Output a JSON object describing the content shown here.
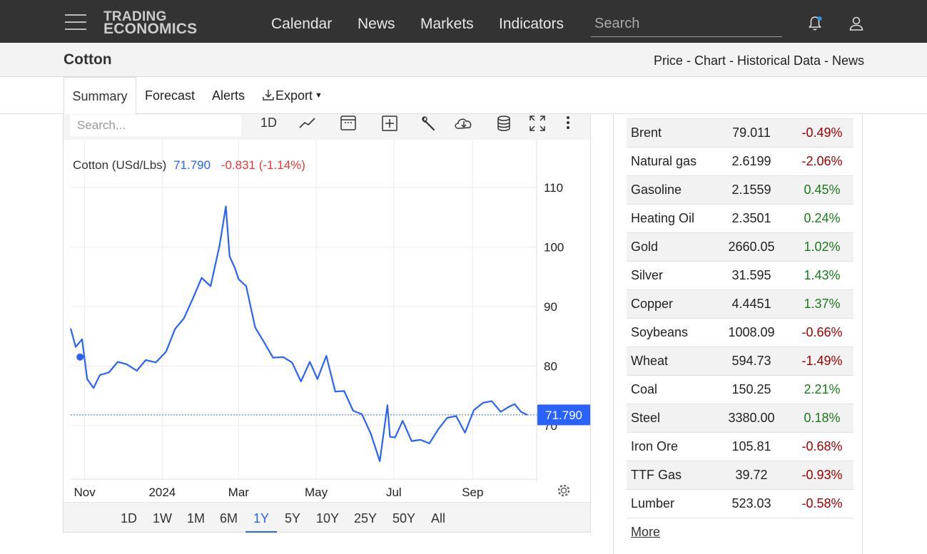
{
  "header": {
    "logo_line1": "TRADING",
    "logo_line2": "ECONOMICS",
    "nav": [
      "Calendar",
      "News",
      "Markets",
      "Indicators"
    ],
    "search_placeholder": "Search"
  },
  "titlebar": {
    "title": "Cotton",
    "subtitle": "Price - Chart - Historical Data - News"
  },
  "tabs": {
    "summary": "Summary",
    "forecast": "Forecast",
    "alerts": "Alerts",
    "export": "Export"
  },
  "chart_toolbar": {
    "search_placeholder": "Search...",
    "interval": "1D"
  },
  "chart_data": {
    "type": "line",
    "legend_name": "Cotton (USd/Lbs)",
    "legend_value": "71.790",
    "legend_change": "-0.831 (-1.14%)",
    "last_label": "71.790",
    "last_value": 71.79,
    "y_ticks": [
      70,
      80,
      90,
      100,
      110
    ],
    "y_tick_labels": [
      "70",
      "80",
      "90",
      "100",
      "110"
    ],
    "x_tick_labels": [
      "Nov",
      "2024",
      "Mar",
      "May",
      "Jul",
      "Sep"
    ],
    "ylim": [
      61,
      118
    ],
    "grid": true,
    "color": "#2962ff",
    "x": [
      "2023-10-21",
      "2023-10-25",
      "2023-10-30",
      "2023-11-03",
      "2023-11-08",
      "2023-11-13",
      "2023-11-20",
      "2023-11-27",
      "2023-12-04",
      "2023-12-12",
      "2023-12-19",
      "2023-12-27",
      "2024-01-04",
      "2024-01-11",
      "2024-01-18",
      "2024-01-25",
      "2024-02-01",
      "2024-02-08",
      "2024-02-15",
      "2024-02-20",
      "2024-02-23",
      "2024-02-27",
      "2024-03-01",
      "2024-03-07",
      "2024-03-14",
      "2024-03-21",
      "2024-03-28",
      "2024-04-05",
      "2024-04-12",
      "2024-04-19",
      "2024-04-26",
      "2024-05-02",
      "2024-05-09",
      "2024-05-16",
      "2024-05-23",
      "2024-05-30",
      "2024-06-06",
      "2024-06-13",
      "2024-06-20",
      "2024-06-26",
      "2024-06-28",
      "2024-07-02",
      "2024-07-08",
      "2024-07-15",
      "2024-07-22",
      "2024-07-29",
      "2024-08-05",
      "2024-08-12",
      "2024-08-19",
      "2024-08-26",
      "2024-09-02",
      "2024-09-09",
      "2024-09-16",
      "2024-09-23",
      "2024-09-30",
      "2024-10-04",
      "2024-10-09",
      "2024-10-14"
    ],
    "values": [
      86.3,
      83.2,
      84.5,
      77.8,
      76.3,
      78.5,
      78.9,
      80.7,
      80.3,
      79.2,
      81.0,
      80.6,
      82.4,
      86.2,
      88.0,
      91.3,
      94.8,
      93.4,
      100.2,
      106.8,
      98.4,
      96.5,
      94.6,
      93.4,
      86.5,
      84.0,
      81.4,
      81.5,
      80.6,
      77.4,
      80.7,
      77.8,
      81.7,
      75.7,
      75.8,
      72.5,
      71.9,
      68.6,
      64.0,
      73.4,
      68.1,
      68.0,
      70.8,
      67.4,
      67.6,
      67.0,
      69.4,
      71.3,
      71.6,
      68.8,
      72.6,
      73.8,
      74.1,
      72.3,
      73.2,
      73.6,
      72.3,
      71.79
    ]
  },
  "ranges": {
    "items": [
      "1D",
      "1W",
      "1M",
      "6M",
      "1Y",
      "5Y",
      "10Y",
      "25Y",
      "50Y",
      "All"
    ],
    "active": "1Y"
  },
  "markets": {
    "rows": [
      {
        "name": "Brent",
        "price": "79.011",
        "change": "-0.49%",
        "dir": "down"
      },
      {
        "name": "Natural gas",
        "price": "2.6199",
        "change": "-2.06%",
        "dir": "down"
      },
      {
        "name": "Gasoline",
        "price": "2.1559",
        "change": "0.45%",
        "dir": "up"
      },
      {
        "name": "Heating Oil",
        "price": "2.3501",
        "change": "0.24%",
        "dir": "up"
      },
      {
        "name": "Gold",
        "price": "2660.05",
        "change": "1.02%",
        "dir": "up"
      },
      {
        "name": "Silver",
        "price": "31.595",
        "change": "1.43%",
        "dir": "up"
      },
      {
        "name": "Copper",
        "price": "4.4451",
        "change": "1.37%",
        "dir": "up"
      },
      {
        "name": "Soybeans",
        "price": "1008.09",
        "change": "-0.66%",
        "dir": "down"
      },
      {
        "name": "Wheat",
        "price": "594.73",
        "change": "-1.49%",
        "dir": "down"
      },
      {
        "name": "Coal",
        "price": "150.25",
        "change": "2.21%",
        "dir": "up"
      },
      {
        "name": "Steel",
        "price": "3380.00",
        "change": "0.18%",
        "dir": "up"
      },
      {
        "name": "Iron Ore",
        "price": "105.81",
        "change": "-0.68%",
        "dir": "down"
      },
      {
        "name": "TTF Gas",
        "price": "39.72",
        "change": "-0.93%",
        "dir": "down"
      },
      {
        "name": "Lumber",
        "price": "523.03",
        "change": "-0.58%",
        "dir": "down"
      }
    ],
    "more": "More"
  },
  "colors": {
    "topbar": "#333333",
    "accent": "#2962ff",
    "up": "#1a7a1a",
    "down": "#9b0000",
    "legend_change": "#e53935"
  }
}
